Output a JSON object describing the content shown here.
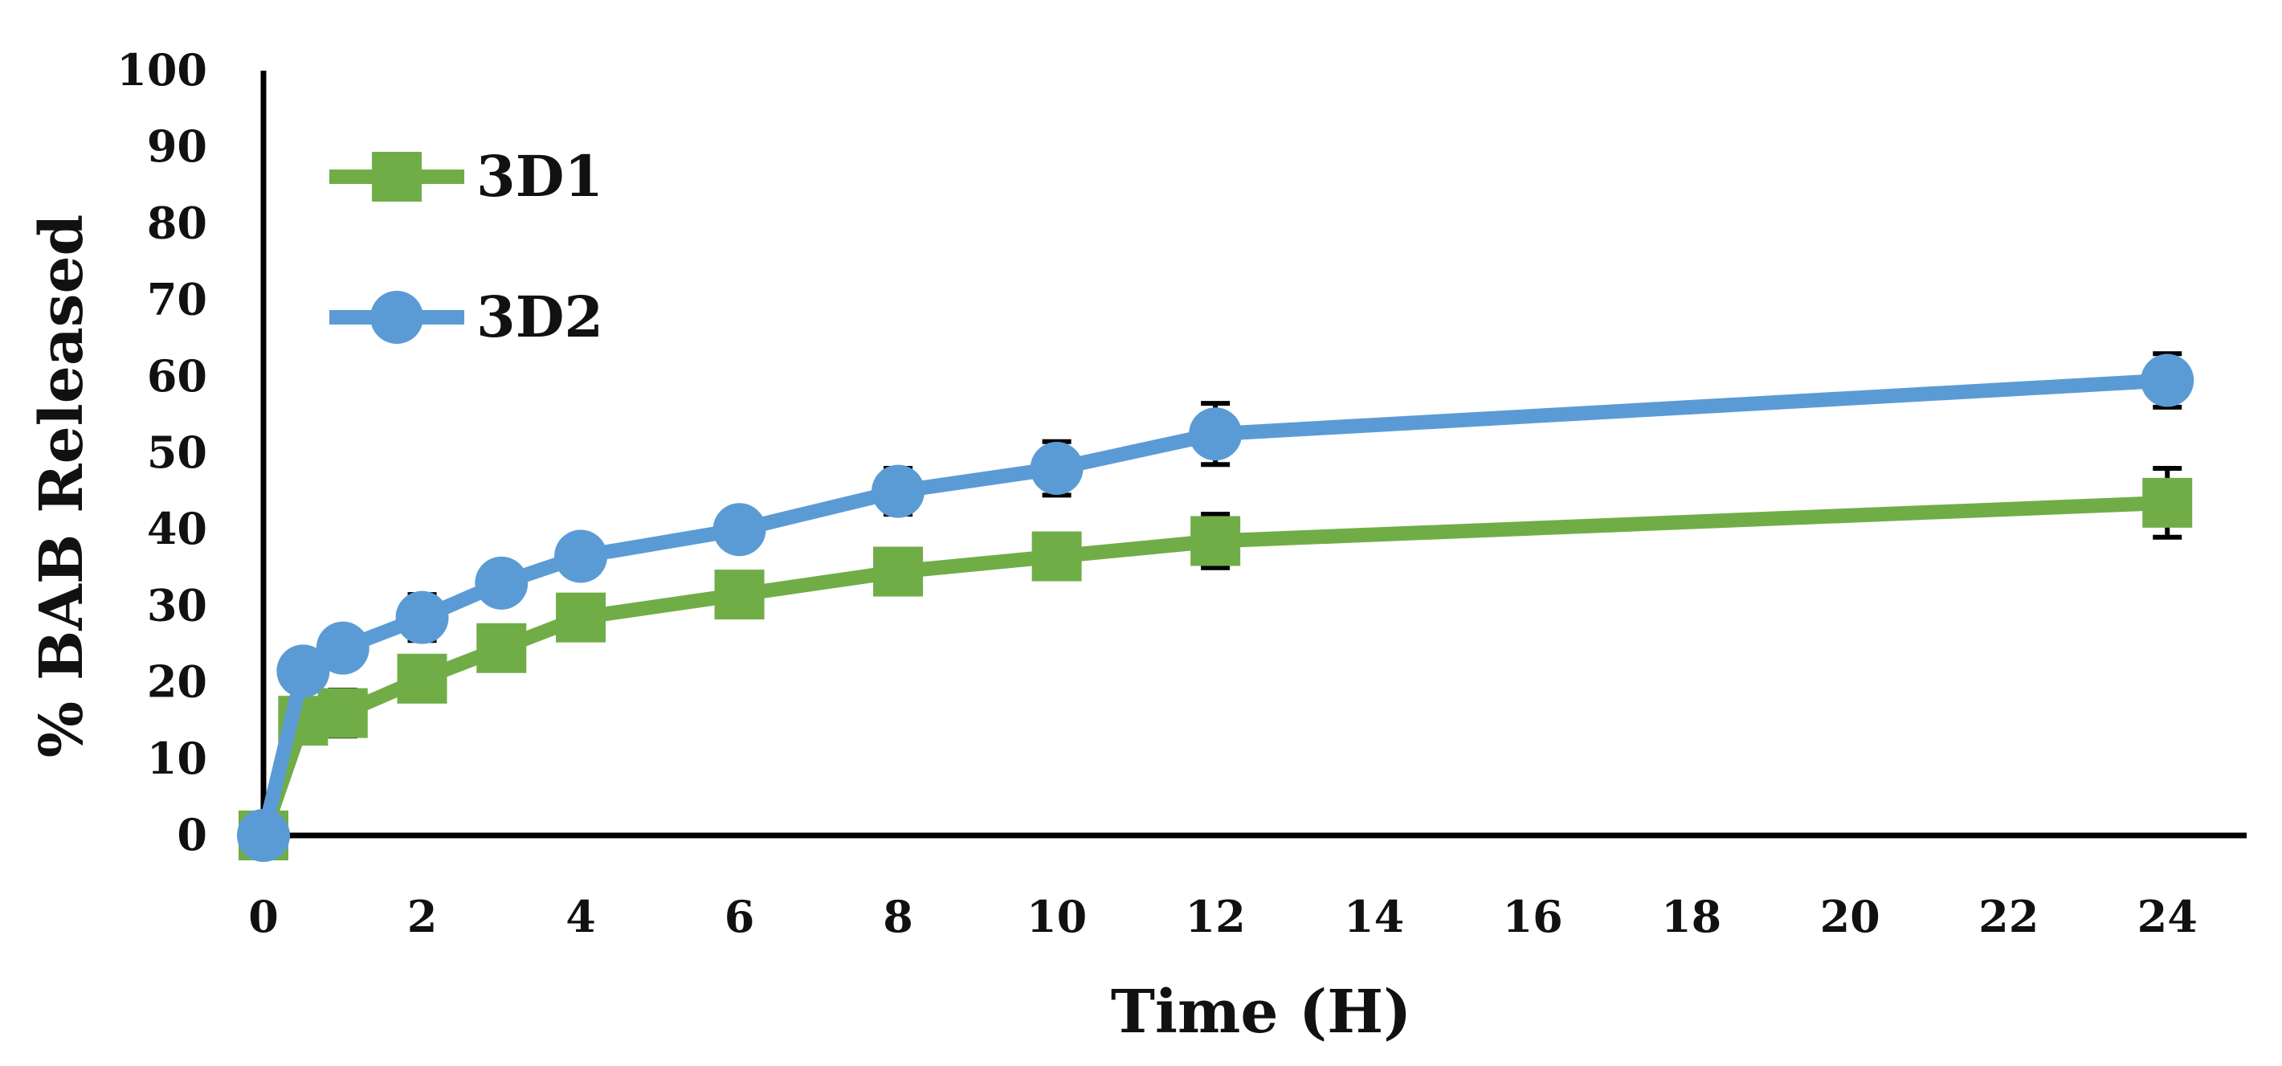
{
  "chart_data": {
    "type": "line",
    "title": "",
    "xlabel": "Time (H)",
    "ylabel": "% BAB Released",
    "xlim": [
      0,
      25
    ],
    "ylim": [
      0,
      100
    ],
    "x_ticks": [
      0,
      2,
      4,
      6,
      8,
      10,
      12,
      14,
      16,
      18,
      20,
      22,
      24
    ],
    "y_ticks": [
      0,
      10,
      20,
      30,
      40,
      50,
      60,
      70,
      80,
      90,
      100
    ],
    "grid": false,
    "legend_position": "top-left",
    "series": [
      {
        "name": "3D1",
        "color": "#70AD47",
        "marker": "square",
        "x": [
          0,
          0.5,
          1,
          2,
          3,
          4,
          6,
          8,
          10,
          12,
          24
        ],
        "y": [
          0,
          15,
          16,
          20.5,
          24.5,
          28.5,
          31.5,
          34.5,
          36.5,
          38.5,
          43.5
        ],
        "error": [
          0,
          2,
          3,
          2,
          1.5,
          2,
          1.5,
          1.5,
          1.5,
          3.5,
          4.5
        ]
      },
      {
        "name": "3D2",
        "color": "#5B9BD5",
        "marker": "circle",
        "x": [
          0,
          0.5,
          1,
          2,
          3,
          4,
          6,
          8,
          10,
          12,
          24
        ],
        "y": [
          0,
          21.5,
          24.5,
          28.5,
          33,
          36.5,
          40,
          45,
          48,
          52.5,
          59.5
        ],
        "error": [
          0,
          2,
          2,
          3,
          1.5,
          2,
          1.5,
          3,
          3.5,
          4,
          3.5
        ]
      }
    ]
  }
}
